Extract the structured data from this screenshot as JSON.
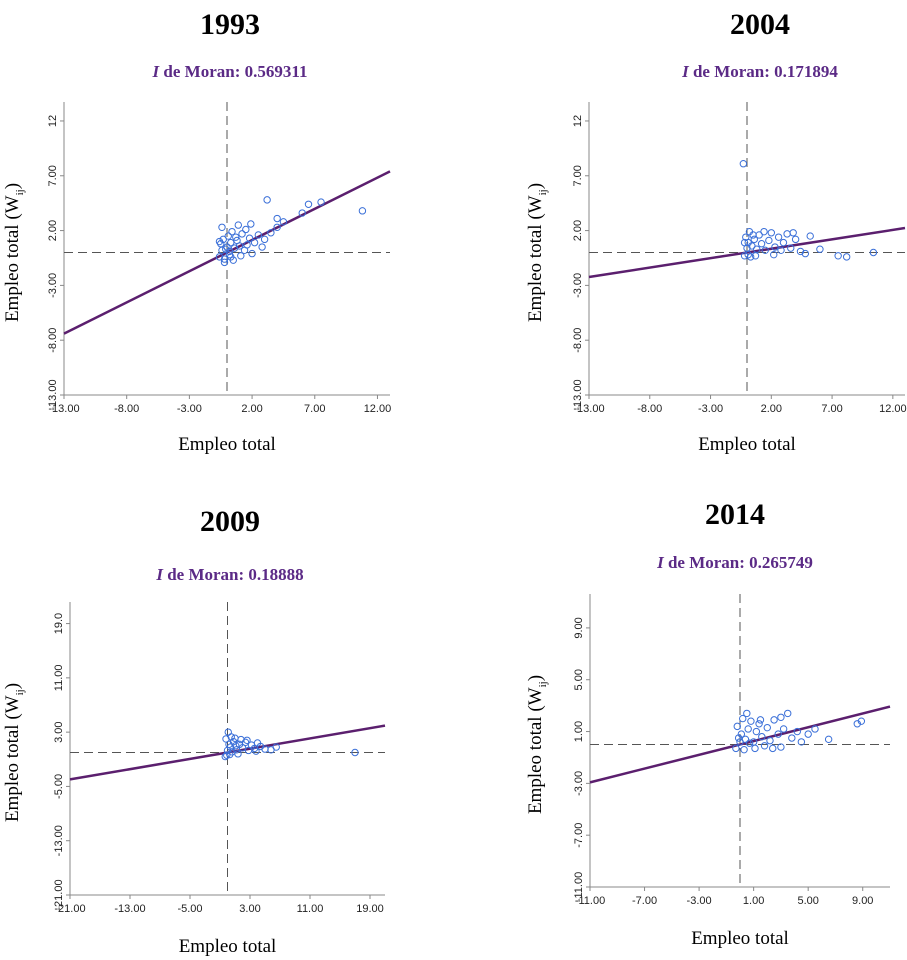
{
  "chart_data": [
    {
      "type": "scatter",
      "title": "1993",
      "subtitle": {
        "italic": "I",
        "text": " de Moran: 0.569311"
      },
      "xlabel": "Empleo total",
      "ylabel": "Empleo total (W",
      "ylabel_sub": "ij",
      "ylabel_close": ")",
      "xlim": [
        -13,
        13
      ],
      "ylim": [
        -13,
        13
      ],
      "xticks": [
        "-13.00",
        "-8.00",
        "-3.00",
        "2.00",
        "7.00",
        "12.00"
      ],
      "xtick_values": [
        -13,
        -8,
        -3,
        2,
        7,
        12
      ],
      "yticks": [
        "-13.00",
        "-8.00",
        "-3.00",
        "2.00",
        "7.00",
        "12"
      ],
      "ytick_values": [
        -13,
        -8,
        -3,
        2,
        7,
        12
      ],
      "mean_x": 0,
      "mean_y": 0,
      "slope": 0.569311,
      "points": [
        [
          -0.6,
          -0.4
        ],
        [
          -0.4,
          0.2
        ],
        [
          -0.2,
          -0.6
        ],
        [
          0,
          0.5
        ],
        [
          0.2,
          -0.2
        ],
        [
          -0.5,
          0.8
        ],
        [
          0.3,
          0.9
        ],
        [
          -0.3,
          1.2
        ],
        [
          0.1,
          1.5
        ],
        [
          0.4,
          1.9
        ],
        [
          -0.4,
          2.3
        ],
        [
          0.6,
          0.4
        ],
        [
          0.8,
          1.1
        ],
        [
          1.0,
          0.6
        ],
        [
          1.2,
          1.7
        ],
        [
          1.5,
          2.1
        ],
        [
          1.8,
          1.3
        ],
        [
          2.2,
          0.9
        ],
        [
          2.5,
          1.6
        ],
        [
          0.9,
          2.5
        ],
        [
          1.4,
          0.2
        ],
        [
          2.0,
          -0.1
        ],
        [
          1.1,
          -0.3
        ],
        [
          0.5,
          -0.7
        ],
        [
          -0.2,
          -0.9
        ],
        [
          3.0,
          1.2
        ],
        [
          3.5,
          1.8
        ],
        [
          4.0,
          2.3
        ],
        [
          4.5,
          2.8
        ],
        [
          3.2,
          4.8
        ],
        [
          4.0,
          3.1
        ],
        [
          6.0,
          3.6
        ],
        [
          6.5,
          4.4
        ],
        [
          7.5,
          4.6
        ],
        [
          10.8,
          3.8
        ],
        [
          0.2,
          0.1
        ],
        [
          -0.1,
          0.3
        ],
        [
          0.7,
          1.4
        ],
        [
          1.6,
          0.7
        ],
        [
          2.8,
          0.5
        ],
        [
          0.3,
          -0.4
        ],
        [
          -0.6,
          1.0
        ],
        [
          1.9,
          2.6
        ]
      ]
    },
    {
      "type": "scatter",
      "title": "2004",
      "subtitle": {
        "italic": "I",
        "text": " de Moran: 0.171894"
      },
      "xlabel": "Empleo total",
      "ylabel": "Empleo total (W",
      "ylabel_sub": "ij",
      "ylabel_close": ")",
      "xlim": [
        -13,
        13
      ],
      "ylim": [
        -13,
        13
      ],
      "xticks": [
        "-13.00",
        "-8.00",
        "-3.00",
        "2.00",
        "7.00",
        "12.00"
      ],
      "xtick_values": [
        -13,
        -8,
        -3,
        2,
        7,
        12
      ],
      "yticks": [
        "-13.00",
        "-8.00",
        "-3.00",
        "2.00",
        "7.00",
        "12"
      ],
      "ytick_values": [
        -13,
        -8,
        -3,
        2,
        7,
        12
      ],
      "mean_x": 0,
      "mean_y": 0,
      "slope": 0.171894,
      "points": [
        [
          -0.3,
          8.1
        ],
        [
          -0.2,
          -0.3
        ],
        [
          0,
          0.4
        ],
        [
          0.1,
          0.9
        ],
        [
          -0.1,
          1.4
        ],
        [
          0.2,
          1.9
        ],
        [
          0.3,
          -0.4
        ],
        [
          0.4,
          0.6
        ],
        [
          0.6,
          1.2
        ],
        [
          0.8,
          0.3
        ],
        [
          1.0,
          1.6
        ],
        [
          1.2,
          0.8
        ],
        [
          1.5,
          0.2
        ],
        [
          1.8,
          1.1
        ],
        [
          2.0,
          1.8
        ],
        [
          2.3,
          0.5
        ],
        [
          2.6,
          1.4
        ],
        [
          3.0,
          0.9
        ],
        [
          3.3,
          1.7
        ],
        [
          3.6,
          0.4
        ],
        [
          4.0,
          1.2
        ],
        [
          4.4,
          0.1
        ],
        [
          4.8,
          -0.1
        ],
        [
          5.2,
          1.5
        ],
        [
          6.0,
          0.3
        ],
        [
          7.5,
          -0.3
        ],
        [
          8.2,
          -0.4
        ],
        [
          10.4,
          0
        ],
        [
          0.5,
          1.6
        ],
        [
          1.4,
          1.9
        ],
        [
          2.8,
          0.2
        ],
        [
          -0.2,
          0.9
        ],
        [
          0.1,
          -0.2
        ],
        [
          0.7,
          -0.3
        ],
        [
          2.2,
          -0.2
        ],
        [
          3.8,
          1.8
        ]
      ]
    },
    {
      "type": "scatter",
      "title": "2009",
      "subtitle": {
        "italic": "I",
        "text": " de Moran: 0.18888"
      },
      "xlabel": "Empleo total",
      "ylabel": "Empleo total (W",
      "ylabel_sub": "ij",
      "ylabel_close": ")",
      "xlim": [
        -21,
        21
      ],
      "ylim": [
        -21,
        21
      ],
      "xticks": [
        "-21.00",
        "-13.00",
        "-5.00",
        "3.00",
        "11.00",
        "19.00"
      ],
      "xtick_values": [
        -21,
        -13,
        -5,
        3,
        11,
        19
      ],
      "yticks": [
        "-21.00",
        "-13.00",
        "-5.00",
        "3.00",
        "11.00",
        "19.0"
      ],
      "ytick_values": [
        -21,
        -13,
        -5,
        3,
        11,
        19
      ],
      "mean_x": 0,
      "mean_y": 0,
      "slope": 0.18888,
      "points": [
        [
          -0.3,
          -0.6
        ],
        [
          0,
          0.3
        ],
        [
          0.2,
          1.2
        ],
        [
          -0.2,
          2.0
        ],
        [
          0.1,
          3.0
        ],
        [
          0.4,
          0.8
        ],
        [
          0.8,
          1.6
        ],
        [
          1.2,
          0.4
        ],
        [
          1.6,
          1.2
        ],
        [
          2.0,
          0.7
        ],
        [
          2.4,
          1.5
        ],
        [
          2.8,
          0.3
        ],
        [
          3.2,
          1.1
        ],
        [
          3.6,
          0.6
        ],
        [
          4.0,
          1.4
        ],
        [
          4.4,
          0.9
        ],
        [
          5.0,
          0.5
        ],
        [
          5.8,
          0.4
        ],
        [
          6.5,
          0.8
        ],
        [
          0.5,
          2.3
        ],
        [
          1.0,
          2.1
        ],
        [
          1.8,
          1.9
        ],
        [
          0.3,
          -0.3
        ],
        [
          -0.1,
          -0.4
        ],
        [
          1.4,
          -0.2
        ],
        [
          2.6,
          1.8
        ],
        [
          3.8,
          0.2
        ],
        [
          17.0,
          0
        ],
        [
          0.6,
          0.1
        ],
        [
          1.1,
          1.0
        ]
      ]
    },
    {
      "type": "scatter",
      "title": "2014",
      "subtitle": {
        "italic": "I",
        "text": " de Moran: 0.265749"
      },
      "xlabel": "Empleo total",
      "ylabel": "Empleo total (W",
      "ylabel_sub": "ij",
      "ylabel_close": ")",
      "xlim": [
        -11,
        11
      ],
      "ylim": [
        -11,
        11
      ],
      "xticks": [
        "-11.00",
        "-7.00",
        "-3.00",
        "1.00",
        "5.00",
        "9.00"
      ],
      "xtick_values": [
        -11,
        -7,
        -3,
        1,
        5,
        9
      ],
      "yticks": [
        "-11.00",
        "-7.00",
        "-3.00",
        "1.00",
        "5.00",
        "9.00"
      ],
      "ytick_values": [
        -11,
        -7,
        -3,
        1,
        5,
        9
      ],
      "mean_x": 0,
      "mean_y": 0,
      "slope": 0.265749,
      "points": [
        [
          -0.3,
          -0.3
        ],
        [
          0,
          0.2
        ],
        [
          0.1,
          0.8
        ],
        [
          -0.2,
          1.4
        ],
        [
          0.2,
          2.0
        ],
        [
          0.4,
          0.4
        ],
        [
          0.6,
          1.2
        ],
        [
          0.8,
          1.8
        ],
        [
          1.0,
          0.2
        ],
        [
          1.2,
          1.0
        ],
        [
          1.4,
          1.6
        ],
        [
          1.6,
          0.6
        ],
        [
          1.8,
          -0.1
        ],
        [
          2.0,
          1.3
        ],
        [
          2.2,
          0.3
        ],
        [
          2.5,
          1.9
        ],
        [
          2.8,
          0.8
        ],
        [
          3.0,
          -0.2
        ],
        [
          3.2,
          1.2
        ],
        [
          3.5,
          2.4
        ],
        [
          3.8,
          0.5
        ],
        [
          4.2,
          1.0
        ],
        [
          4.5,
          0.2
        ],
        [
          5.0,
          0.8
        ],
        [
          5.5,
          1.2
        ],
        [
          6.5,
          0.4
        ],
        [
          8.6,
          1.6
        ],
        [
          8.9,
          1.8
        ],
        [
          0.3,
          -0.4
        ],
        [
          -0.1,
          0.5
        ],
        [
          0.5,
          2.4
        ],
        [
          1.1,
          -0.3
        ],
        [
          2.4,
          -0.3
        ],
        [
          3.0,
          2.1
        ],
        [
          0.7,
          0.1
        ],
        [
          1.5,
          1.9
        ]
      ]
    }
  ]
}
